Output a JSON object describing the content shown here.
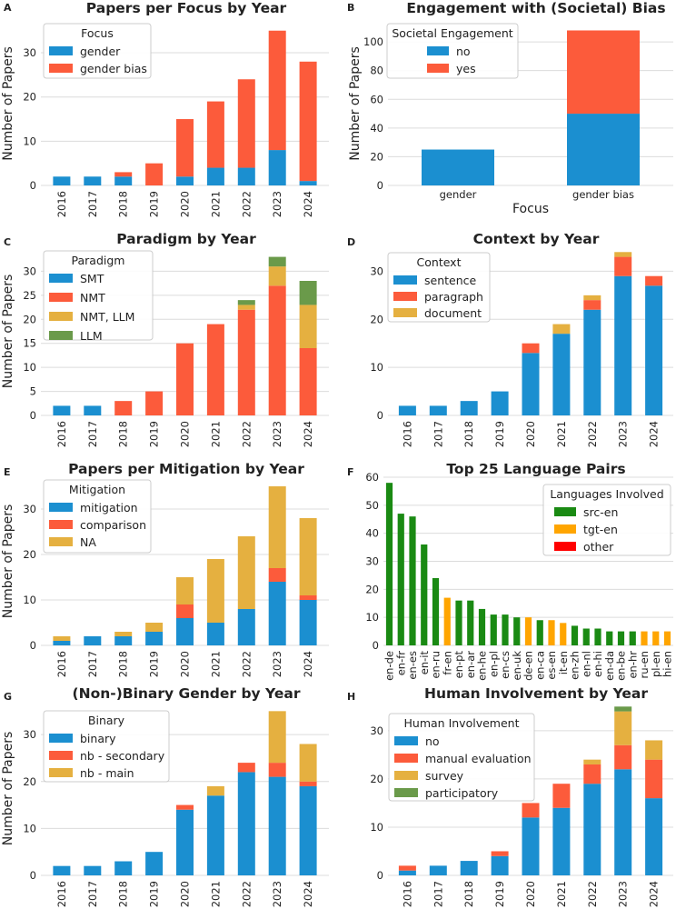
{
  "chart_data": [
    {
      "panel": "A",
      "type": "bar",
      "stacked": true,
      "title": "Papers per Focus by Year",
      "xlabel": "",
      "ylabel": "Number of Papers",
      "ylim": [
        0,
        37
      ],
      "yticks": [
        0,
        10,
        20,
        30
      ],
      "categories": [
        "2016",
        "2017",
        "2018",
        "2019",
        "2020",
        "2021",
        "2022",
        "2023",
        "2024"
      ],
      "legend": {
        "title": "Focus",
        "position": "top-left"
      },
      "series": [
        {
          "name": "gender",
          "color": "#1b8fd0",
          "values": [
            2,
            2,
            2,
            0,
            2,
            4,
            4,
            8,
            1
          ]
        },
        {
          "name": "gender bias",
          "color": "#fc5b3b",
          "values": [
            0,
            0,
            1,
            5,
            13,
            15,
            20,
            27,
            27
          ]
        }
      ]
    },
    {
      "panel": "B",
      "type": "bar",
      "stacked": true,
      "title": "Engagement with (Societal) Bias",
      "xlabel": "Focus",
      "ylabel": "Number of Papers",
      "ylim": [
        0,
        114
      ],
      "yticks": [
        0,
        20,
        40,
        60,
        80,
        100
      ],
      "categories": [
        "gender",
        "gender bias"
      ],
      "legend": {
        "title": "Societal Engagement",
        "position": "top-left"
      },
      "series": [
        {
          "name": "no",
          "color": "#1b8fd0",
          "values": [
            25,
            50
          ]
        },
        {
          "name": "yes",
          "color": "#fc5b3b",
          "values": [
            0,
            58
          ]
        }
      ]
    },
    {
      "panel": "C",
      "type": "bar",
      "stacked": true,
      "title": "Paradigm by Year",
      "xlabel": "",
      "ylabel": "Number of Papers",
      "ylim": [
        0,
        35
      ],
      "yticks": [
        0,
        5,
        10,
        15,
        20,
        25,
        30
      ],
      "categories": [
        "2016",
        "2017",
        "2018",
        "2019",
        "2020",
        "2021",
        "2022",
        "2023",
        "2024"
      ],
      "legend": {
        "title": "Paradigm",
        "position": "top-left"
      },
      "series": [
        {
          "name": "SMT",
          "color": "#1b8fd0",
          "values": [
            2,
            2,
            0,
            0,
            0,
            0,
            0,
            0,
            0
          ]
        },
        {
          "name": "NMT",
          "color": "#fc5b3b",
          "values": [
            0,
            0,
            3,
            5,
            15,
            19,
            22,
            27,
            14
          ]
        },
        {
          "name": "NMT, LLM",
          "color": "#e5b040",
          "values": [
            0,
            0,
            0,
            0,
            0,
            0,
            1,
            4,
            9
          ]
        },
        {
          "name": "LLM",
          "color": "#6a9a4a",
          "values": [
            0,
            0,
            0,
            0,
            0,
            0,
            1,
            2,
            5
          ]
        }
      ]
    },
    {
      "panel": "D",
      "type": "bar",
      "stacked": true,
      "title": "Context by Year",
      "xlabel": "",
      "ylabel": "",
      "ylim": [
        0,
        35
      ],
      "yticks": [
        0,
        10,
        20,
        30
      ],
      "categories": [
        "2016",
        "2017",
        "2018",
        "2019",
        "2020",
        "2021",
        "2022",
        "2023",
        "2024"
      ],
      "legend": {
        "title": "Context",
        "position": "top-left"
      },
      "series": [
        {
          "name": "sentence",
          "color": "#1b8fd0",
          "values": [
            2,
            2,
            3,
            5,
            13,
            17,
            22,
            29,
            27
          ]
        },
        {
          "name": "paragraph",
          "color": "#fc5b3b",
          "values": [
            0,
            0,
            0,
            0,
            2,
            0,
            2,
            4,
            2
          ]
        },
        {
          "name": "document",
          "color": "#e5b040",
          "values": [
            0,
            0,
            0,
            0,
            0,
            2,
            1,
            1,
            0
          ]
        }
      ]
    },
    {
      "panel": "E",
      "type": "bar",
      "stacked": true,
      "title": "Papers per Mitigation by Year",
      "xlabel": "",
      "ylabel": "Number of Papers",
      "ylim": [
        0,
        37
      ],
      "yticks": [
        0,
        10,
        20,
        30
      ],
      "categories": [
        "2016",
        "2017",
        "2018",
        "2019",
        "2020",
        "2021",
        "2022",
        "2023",
        "2024"
      ],
      "legend": {
        "title": "Mitigation",
        "position": "top-left"
      },
      "series": [
        {
          "name": "mitigation",
          "color": "#1b8fd0",
          "values": [
            1,
            2,
            2,
            3,
            6,
            5,
            8,
            14,
            10
          ]
        },
        {
          "name": "comparison",
          "color": "#fc5b3b",
          "values": [
            0,
            0,
            0,
            0,
            3,
            0,
            0,
            3,
            1
          ]
        },
        {
          "name": "NA",
          "color": "#e5b040",
          "values": [
            1,
            0,
            1,
            2,
            6,
            14,
            16,
            18,
            17
          ]
        }
      ]
    },
    {
      "panel": "F",
      "type": "bar",
      "stacked": false,
      "title": "Top 25 Language Pairs",
      "xlabel": "",
      "ylabel": "",
      "ylim": [
        0,
        60
      ],
      "yticks": [
        0,
        10,
        20,
        30,
        40,
        50,
        60
      ],
      "categories": [
        "en-de",
        "en-fr",
        "en-es",
        "en-it",
        "en-ru",
        "fr-en",
        "en-pt",
        "en-ar",
        "en-he",
        "en-pl",
        "en-cs",
        "en-uk",
        "de-en",
        "en-ca",
        "es-en",
        "it-en",
        "en-zh",
        "en-nl",
        "en-hi",
        "en-da",
        "en-be",
        "en-hr",
        "ru-en",
        "pl-en",
        "hi-en"
      ],
      "values": [
        58,
        47,
        46,
        36,
        24,
        17,
        16,
        16,
        13,
        11,
        11,
        10,
        10,
        9,
        9,
        8,
        7,
        6,
        6,
        5,
        5,
        5,
        5,
        5,
        5
      ],
      "groups": [
        "src-en",
        "src-en",
        "src-en",
        "src-en",
        "src-en",
        "tgt-en",
        "src-en",
        "src-en",
        "src-en",
        "src-en",
        "src-en",
        "src-en",
        "tgt-en",
        "src-en",
        "tgt-en",
        "tgt-en",
        "src-en",
        "src-en",
        "src-en",
        "src-en",
        "src-en",
        "src-en",
        "tgt-en",
        "tgt-en",
        "tgt-en"
      ],
      "legend": {
        "title": "Languages Involved",
        "position": "top-right"
      },
      "series": [
        {
          "name": "src-en",
          "color": "#1a8a13"
        },
        {
          "name": "tgt-en",
          "color": "#ffa500"
        },
        {
          "name": "other",
          "color": "#ff0000"
        }
      ]
    },
    {
      "panel": "G",
      "type": "bar",
      "stacked": true,
      "title": "(Non-)Binary Gender by Year",
      "xlabel": "",
      "ylabel": "Number of Papers",
      "ylim": [
        0,
        37
      ],
      "yticks": [
        0,
        10,
        20,
        30
      ],
      "categories": [
        "2016",
        "2017",
        "2018",
        "2019",
        "2020",
        "2021",
        "2022",
        "2023",
        "2024"
      ],
      "legend": {
        "title": "Binary",
        "position": "top-left"
      },
      "series": [
        {
          "name": "binary",
          "color": "#1b8fd0",
          "values": [
            2,
            2,
            3,
            5,
            14,
            17,
            22,
            21,
            19
          ]
        },
        {
          "name": "nb - secondary",
          "color": "#fc5b3b",
          "values": [
            0,
            0,
            0,
            0,
            1,
            0,
            2,
            3,
            1
          ]
        },
        {
          "name": "nb - main",
          "color": "#e5b040",
          "values": [
            0,
            0,
            0,
            0,
            0,
            2,
            0,
            11,
            8
          ]
        }
      ]
    },
    {
      "panel": "H",
      "type": "bar",
      "stacked": true,
      "title": "Human Involvement by Year",
      "xlabel": "",
      "ylabel": "",
      "ylim": [
        0,
        36
      ],
      "yticks": [
        0,
        10,
        20,
        30
      ],
      "categories": [
        "2016",
        "2017",
        "2018",
        "2019",
        "2020",
        "2021",
        "2022",
        "2023",
        "2024"
      ],
      "legend": {
        "title": "Human Involvement",
        "position": "top-left"
      },
      "series": [
        {
          "name": "no",
          "color": "#1b8fd0",
          "values": [
            1,
            2,
            3,
            4,
            12,
            14,
            19,
            22,
            16
          ]
        },
        {
          "name": "manual evaluation",
          "color": "#fc5b3b",
          "values": [
            1,
            0,
            0,
            1,
            3,
            5,
            4,
            5,
            8
          ]
        },
        {
          "name": "survey",
          "color": "#e5b040",
          "values": [
            0,
            0,
            0,
            0,
            0,
            0,
            1,
            7,
            4
          ]
        },
        {
          "name": "participatory",
          "color": "#6a9a4a",
          "values": [
            0,
            0,
            0,
            0,
            0,
            0,
            0,
            1,
            0
          ]
        }
      ]
    }
  ]
}
